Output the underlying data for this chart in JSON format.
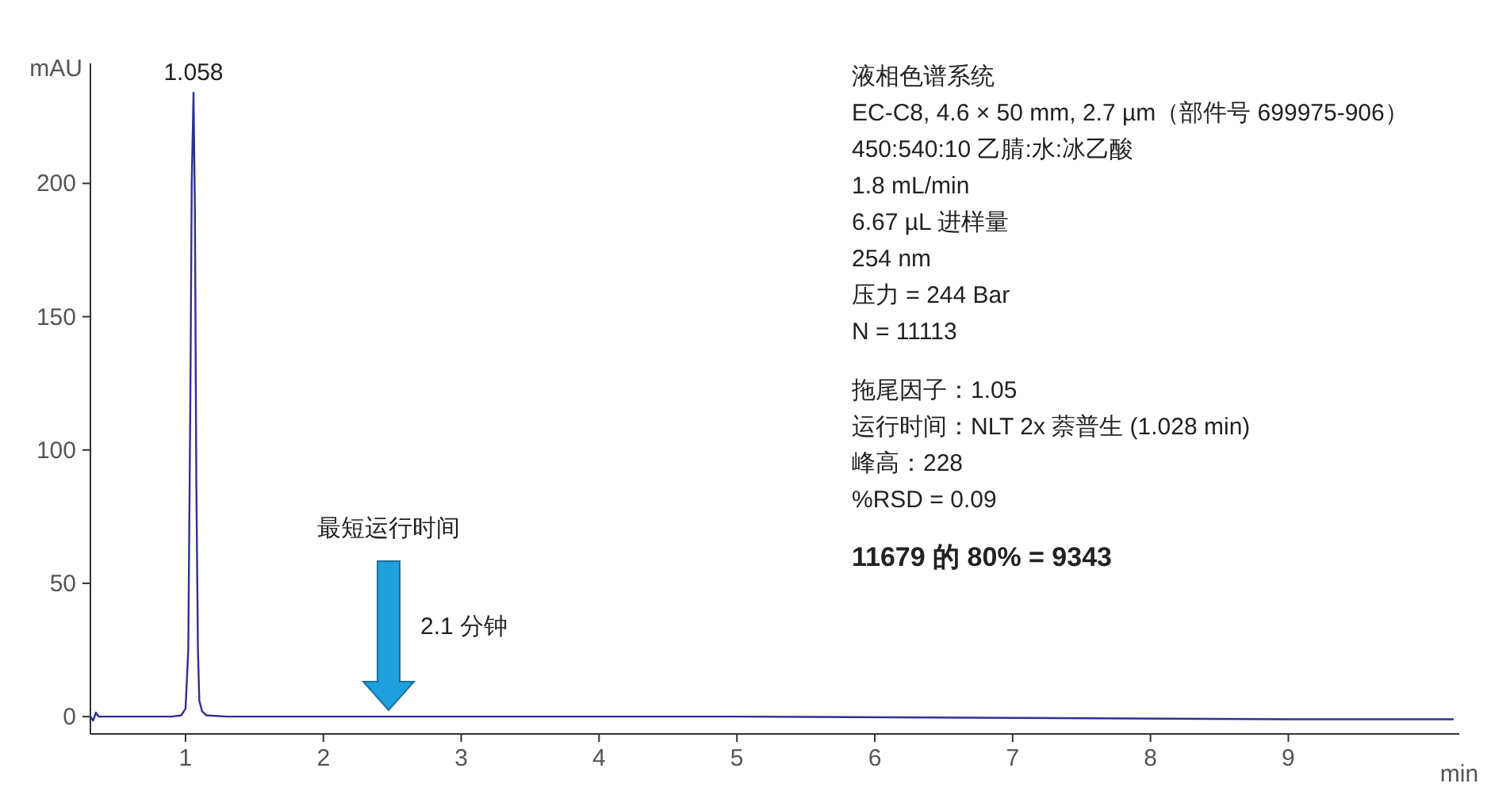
{
  "chart_data": {
    "type": "line",
    "ylabel": "mAU",
    "xlabel": "min",
    "xlim": [
      0.31,
      10.24
    ],
    "xticks": [
      1,
      2,
      3,
      4,
      5,
      6,
      7,
      8,
      9
    ],
    "ylim": [
      -6.5,
      245
    ],
    "yticks": [
      0,
      50,
      100,
      150,
      200
    ],
    "grid": false,
    "marker": "none",
    "line_style": "solid",
    "series": [
      {
        "color": "#2e3192",
        "x": [
          0.31,
          0.33,
          0.35,
          0.37,
          0.4,
          0.6,
          0.9,
          0.97,
          1.0,
          1.02,
          1.035,
          1.045,
          1.058,
          1.068,
          1.078,
          1.09,
          1.1,
          1.12,
          1.15,
          1.3,
          2.0,
          3.0,
          5.0,
          7.0,
          9.0,
          10.2
        ],
        "values": [
          0,
          -1.5,
          1.5,
          0,
          0,
          0,
          0,
          0.5,
          3,
          25,
          120,
          200,
          234,
          190,
          90,
          25,
          6,
          2,
          0.5,
          0,
          0,
          0,
          0,
          -0.5,
          -1,
          -1
        ]
      }
    ],
    "annotations": [
      {
        "text": "1.058",
        "x": 1.058,
        "y": 234
      },
      "最短运行时间",
      "2.1 分钟",
      "液相色谱系统",
      "EC-C8, 4.6 × 50 mm, 2.7 µm（部件号 699975-906）",
      "450:540:10 乙腈:水:冰乙酸",
      "1.8 mL/min",
      "6.67 µL 进样量",
      "254 nm",
      "压力 = 244 Bar",
      "N = 11113",
      "拖尾因子：1.05",
      "运行时间：NLT 2x 萘普生 (1.028 min)",
      "峰高：228",
      "%RSD = 0.09",
      "11679 的 80% = 9343"
    ]
  }
}
